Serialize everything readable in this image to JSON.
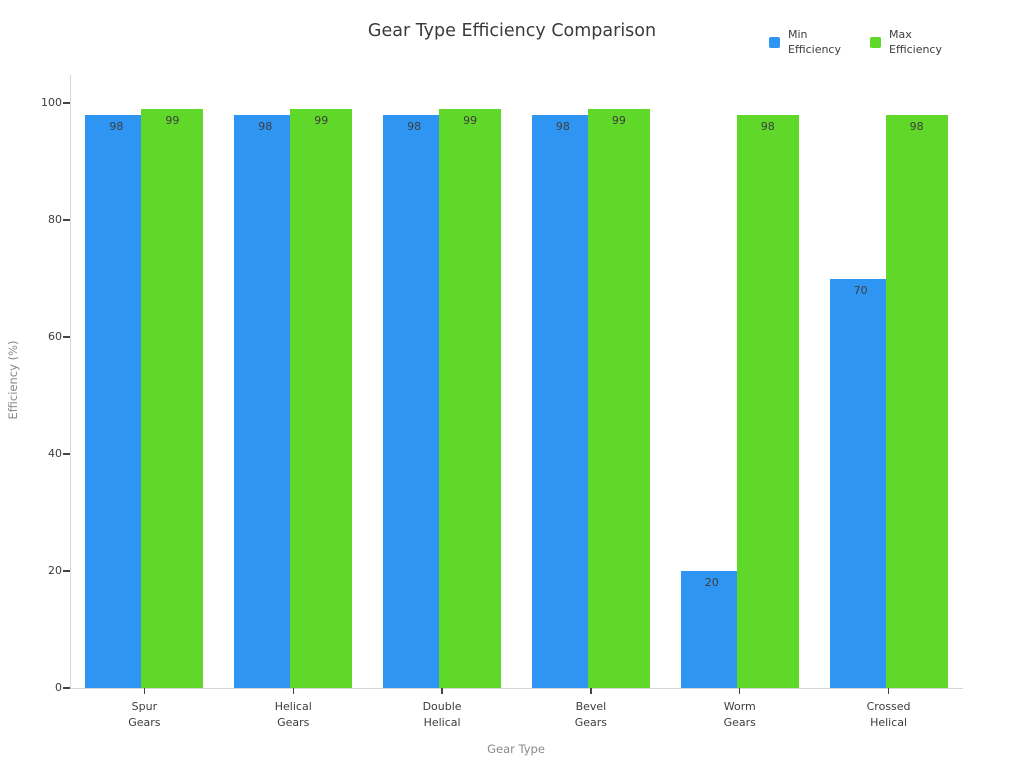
{
  "chart_data": {
    "type": "bar",
    "title": "Gear Type Efficiency Comparison",
    "xlabel": "Gear Type",
    "ylabel": "Efficiency (%)",
    "categories": [
      "Spur Gears",
      "Helical Gears",
      "Double Helical",
      "Bevel Gears",
      "Worm Gears",
      "Crossed Helical"
    ],
    "series": [
      {
        "name": "Min Efficiency",
        "color": "#2F95F3",
        "values": [
          98,
          98,
          98,
          98,
          20,
          70
        ]
      },
      {
        "name": "Max Efficiency",
        "color": "#60D829",
        "values": [
          99,
          99,
          99,
          99,
          98,
          98
        ]
      }
    ],
    "ylim": [
      0,
      100
    ],
    "yticks": [
      0,
      20,
      40,
      60,
      80,
      100
    ],
    "grid": false,
    "legend_position": "top-right",
    "bar_value_labels": true
  },
  "colors": {
    "min_series": "#2F95F3",
    "max_series": "#60D829",
    "title_text": "#3B3B3B",
    "tick_text": "#3D3D3D",
    "axis_title_text": "#8A8A8A",
    "spine": "#D6D6D6",
    "background": "#FFFFFF"
  }
}
